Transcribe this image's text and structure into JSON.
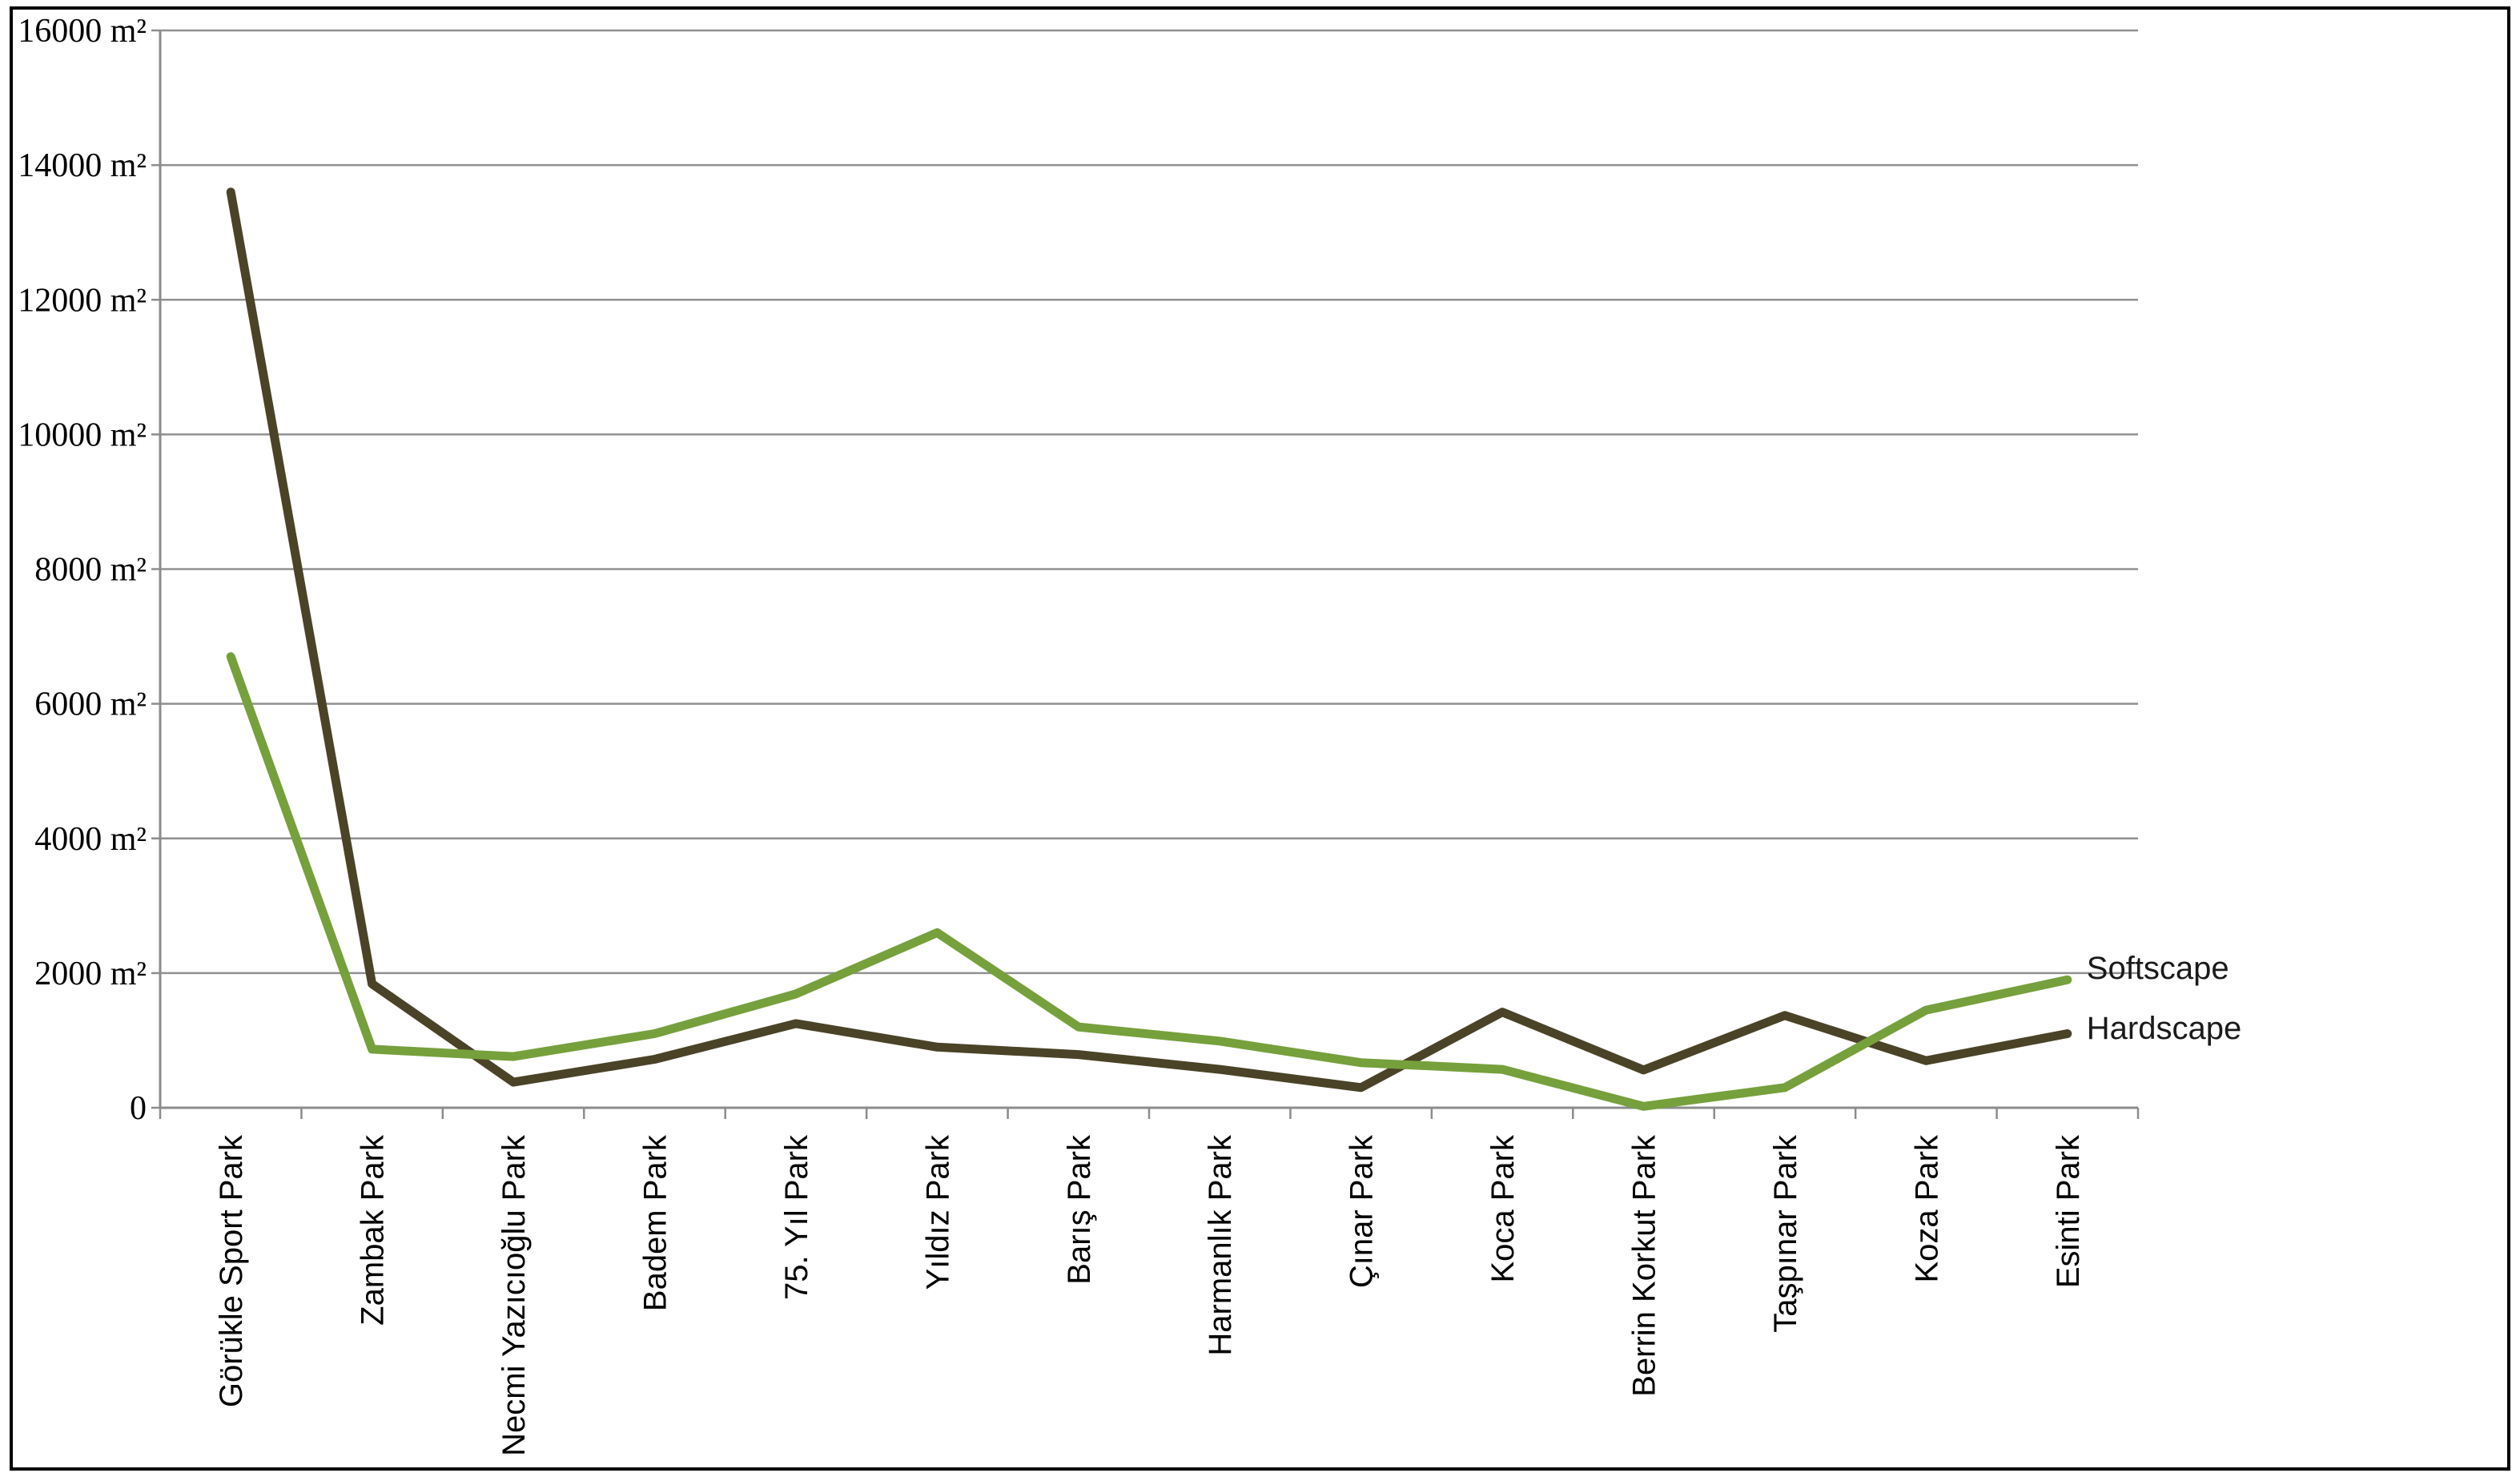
{
  "chart_data": {
    "type": "line",
    "title": "",
    "xlabel": "",
    "ylabel": "",
    "unit": "m²",
    "categories": [
      "Görükle Sport Park",
      "Zambak Park",
      "Necmi Yazıcıoğlu Park",
      "Badem Park",
      "75. Yıl Park",
      "Yıldız Park",
      "Barış Park",
      "Harmanlık Park",
      "Çınar Park",
      "Koca Park",
      "Berrin Korkut Park",
      "Taşpınar Park",
      "Koza Park",
      "Esinti Park"
    ],
    "series": [
      {
        "name": "Hardscape",
        "color": "#4a4327",
        "values": [
          13600,
          1840,
          380,
          720,
          1250,
          900,
          790,
          570,
          300,
          1420,
          560,
          1370,
          700,
          1100
        ]
      },
      {
        "name": "Softscape",
        "color": "#76a03c",
        "values": [
          6700,
          870,
          760,
          1100,
          1690,
          2600,
          1200,
          990,
          670,
          570,
          20,
          300,
          1450,
          1900
        ]
      }
    ],
    "ylim": [
      0,
      16000
    ],
    "y_tick_step": 2000,
    "y_tick_labels": [
      "0",
      "2000 m²",
      "4000 m²",
      "6000 m²",
      "8000 m²",
      "10000 m²",
      "12000 m²",
      "14000 m²",
      "16000 m²"
    ],
    "grid": true,
    "legend_position": "right-of-line-ends",
    "legend_entries": [
      "Softscape",
      "Hardscape"
    ]
  },
  "styles": {
    "gridline_color": "#909090",
    "axis_color": "#8c8c8c",
    "text_color": "#000000",
    "border_color": "#000000",
    "background_color": "#ffffff"
  }
}
